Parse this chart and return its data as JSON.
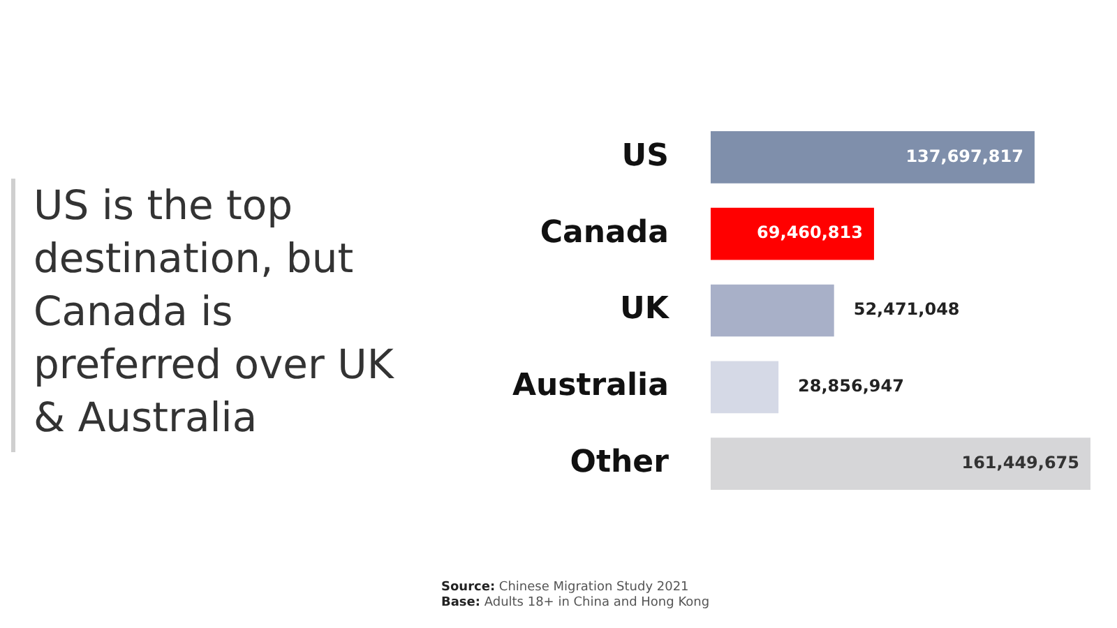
{
  "chart_data": {
    "type": "bar",
    "orientation": "horizontal",
    "title": "US is the top destination, but Canada is preferred over UK & Australia",
    "categories": [
      "US",
      "Canada",
      "UK",
      "Australia",
      "Other"
    ],
    "values": [
      137697817,
      69460813,
      52471048,
      28856947,
      161449675
    ],
    "colors": [
      "#7f8fab",
      "#ff0000",
      "#a8b0c8",
      "#d5d9e6",
      "#d6d6d8"
    ],
    "value_labels": [
      "137,697,817",
      "69,460,813",
      "52,471,048",
      "28,856,947",
      "161,449,675"
    ],
    "grid": false,
    "legend": false,
    "annotations": [
      "Source: Chinese Migration Study 2021",
      "Base: Adults 18+ in China and Hong Kong"
    ]
  }
}
